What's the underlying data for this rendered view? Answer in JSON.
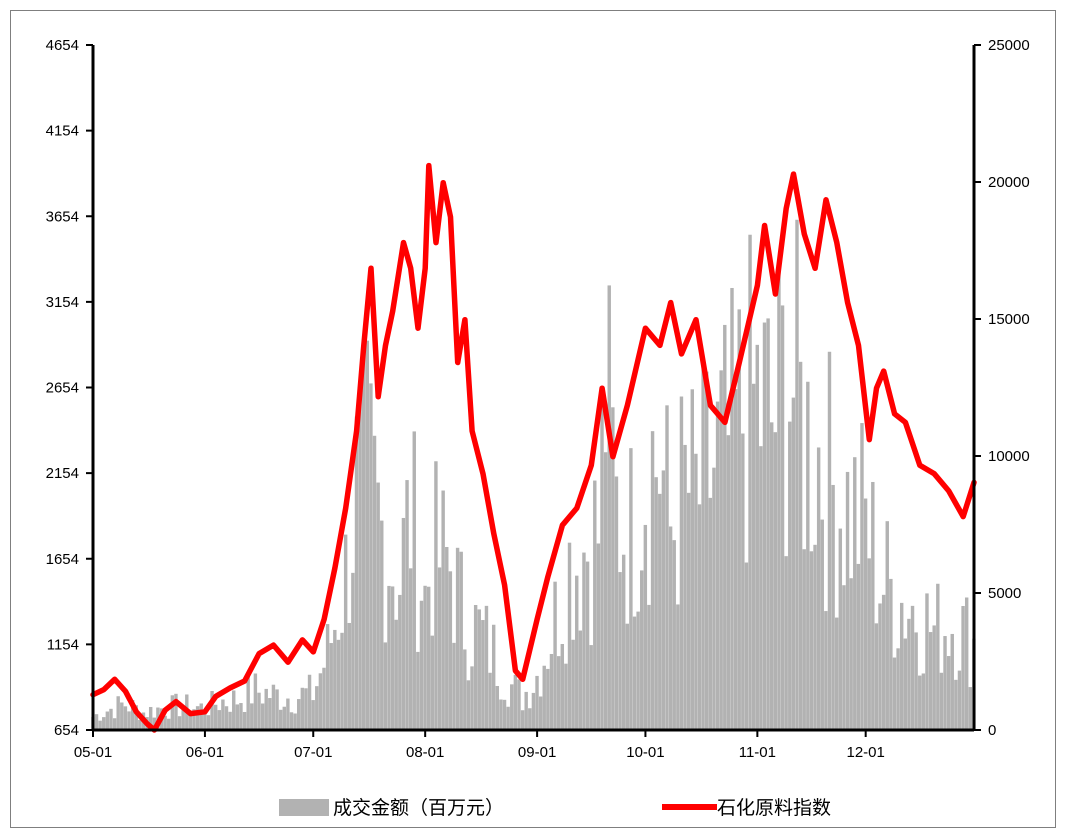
{
  "chart_data": {
    "type": "bar+line",
    "title": "",
    "x_tick_labels": [
      "05-01",
      "06-01",
      "07-01",
      "08-01",
      "09-01",
      "10-01",
      "11-01",
      "12-01"
    ],
    "left_axis": {
      "ylim": [
        654,
        4654
      ],
      "ticks": [
        "654",
        "1154",
        "1654",
        "2154",
        "2654",
        "3154",
        "3654",
        "4154",
        "4654"
      ]
    },
    "right_axis": {
      "ylim": [
        0,
        25000
      ],
      "ticks": [
        "0",
        "5000",
        "10000",
        "15000",
        "20000",
        "25000"
      ]
    },
    "grid": false,
    "legend_position": "bottom",
    "colors": {
      "bars": "#b2b2b2",
      "line": "#ff0000",
      "axis": "#000000",
      "frame": "#7f7f7f"
    },
    "series": [
      {
        "name": "成交金额（百万元）",
        "type": "bar",
        "axis": "right",
        "points": [
          [
            "05-01",
            600
          ],
          [
            "05-05",
            900
          ],
          [
            "05-10",
            1200
          ],
          [
            "05-15",
            800
          ],
          [
            "05-20",
            1000
          ],
          [
            "05-25",
            1100
          ],
          [
            "06-01",
            1000
          ],
          [
            "06-05",
            1300
          ],
          [
            "06-10",
            1400
          ],
          [
            "06-15",
            1800
          ],
          [
            "06-20",
            1600
          ],
          [
            "06-25",
            1500
          ],
          [
            "07-01",
            1700
          ],
          [
            "07-05",
            3500
          ],
          [
            "07-10",
            7000
          ],
          [
            "07-13",
            11000
          ],
          [
            "07-16",
            12000
          ],
          [
            "07-20",
            9000
          ],
          [
            "07-25",
            7000
          ],
          [
            "07-28",
            10000
          ],
          [
            "08-01",
            6000
          ],
          [
            "08-03",
            8000
          ],
          [
            "08-08",
            7500
          ],
          [
            "08-12",
            5000
          ],
          [
            "08-16",
            4500
          ],
          [
            "08-20",
            3500
          ],
          [
            "08-25",
            2000
          ],
          [
            "08-28",
            1500
          ],
          [
            "09-01",
            2500
          ],
          [
            "09-05",
            4500
          ],
          [
            "09-10",
            7500
          ],
          [
            "09-15",
            8500
          ],
          [
            "09-18",
            9000
          ],
          [
            "09-20",
            15500
          ],
          [
            "09-23",
            10000
          ],
          [
            "09-27",
            9000
          ],
          [
            "10-01",
            12000
          ],
          [
            "10-05",
            12500
          ],
          [
            "10-08",
            9000
          ],
          [
            "10-12",
            11000
          ],
          [
            "10-15",
            10500
          ],
          [
            "10-20",
            12000
          ],
          [
            "10-25",
            13000
          ],
          [
            "10-28",
            14500
          ],
          [
            "11-01",
            15000
          ],
          [
            "11-05",
            14000
          ],
          [
            "11-10",
            16500
          ],
          [
            "11-14",
            13500
          ],
          [
            "11-18",
            12500
          ],
          [
            "11-22",
            11000
          ],
          [
            "11-26",
            10000
          ],
          [
            "12-01",
            9500
          ],
          [
            "12-05",
            7000
          ],
          [
            "12-10",
            6000
          ],
          [
            "12-15",
            5500
          ],
          [
            "12-20",
            4500
          ],
          [
            "12-25",
            5000
          ],
          [
            "12-31",
            4000
          ]
        ]
      },
      {
        "name": "石化原料指数",
        "type": "line",
        "axis": "left",
        "points": [
          [
            "05-01",
            860
          ],
          [
            "05-04",
            890
          ],
          [
            "05-07",
            950
          ],
          [
            "05-10",
            880
          ],
          [
            "05-13",
            760
          ],
          [
            "05-16",
            690
          ],
          [
            "05-18",
            654
          ],
          [
            "05-21",
            770
          ],
          [
            "05-24",
            820
          ],
          [
            "05-28",
            750
          ],
          [
            "06-01",
            760
          ],
          [
            "06-04",
            850
          ],
          [
            "06-08",
            900
          ],
          [
            "06-12",
            940
          ],
          [
            "06-16",
            1100
          ],
          [
            "06-20",
            1150
          ],
          [
            "06-24",
            1050
          ],
          [
            "06-28",
            1180
          ],
          [
            "07-01",
            1110
          ],
          [
            "07-04",
            1300
          ],
          [
            "07-07",
            1600
          ],
          [
            "07-10",
            1950
          ],
          [
            "07-13",
            2400
          ],
          [
            "07-15",
            2900
          ],
          [
            "07-17",
            3350
          ],
          [
            "07-19",
            2600
          ],
          [
            "07-21",
            2900
          ],
          [
            "07-23",
            3100
          ],
          [
            "07-26",
            3500
          ],
          [
            "07-28",
            3350
          ],
          [
            "07-30",
            3000
          ],
          [
            "08-01",
            3350
          ],
          [
            "08-02",
            3950
          ],
          [
            "08-04",
            3500
          ],
          [
            "08-06",
            3850
          ],
          [
            "08-08",
            3650
          ],
          [
            "08-10",
            2800
          ],
          [
            "08-12",
            3050
          ],
          [
            "08-14",
            2400
          ],
          [
            "08-17",
            2150
          ],
          [
            "08-20",
            1800
          ],
          [
            "08-23",
            1500
          ],
          [
            "08-26",
            1000
          ],
          [
            "08-28",
            950
          ],
          [
            "09-01",
            1300
          ],
          [
            "09-04",
            1550
          ],
          [
            "09-08",
            1850
          ],
          [
            "09-12",
            1950
          ],
          [
            "09-16",
            2200
          ],
          [
            "09-19",
            2650
          ],
          [
            "09-22",
            2250
          ],
          [
            "09-26",
            2550
          ],
          [
            "10-01",
            3000
          ],
          [
            "10-05",
            2900
          ],
          [
            "10-08",
            3150
          ],
          [
            "10-11",
            2850
          ],
          [
            "10-15",
            3050
          ],
          [
            "10-19",
            2550
          ],
          [
            "10-23",
            2450
          ],
          [
            "10-27",
            2800
          ],
          [
            "11-01",
            3250
          ],
          [
            "11-03",
            3600
          ],
          [
            "11-06",
            3200
          ],
          [
            "11-09",
            3700
          ],
          [
            "11-11",
            3900
          ],
          [
            "11-14",
            3550
          ],
          [
            "11-17",
            3350
          ],
          [
            "11-20",
            3750
          ],
          [
            "11-23",
            3500
          ],
          [
            "11-26",
            3150
          ],
          [
            "11-29",
            2900
          ],
          [
            "12-02",
            2350
          ],
          [
            "12-04",
            2650
          ],
          [
            "12-06",
            2750
          ],
          [
            "12-09",
            2500
          ],
          [
            "12-12",
            2450
          ],
          [
            "12-16",
            2200
          ],
          [
            "12-20",
            2150
          ],
          [
            "12-24",
            2050
          ],
          [
            "12-28",
            1900
          ],
          [
            "12-31",
            2100
          ]
        ]
      }
    ]
  }
}
